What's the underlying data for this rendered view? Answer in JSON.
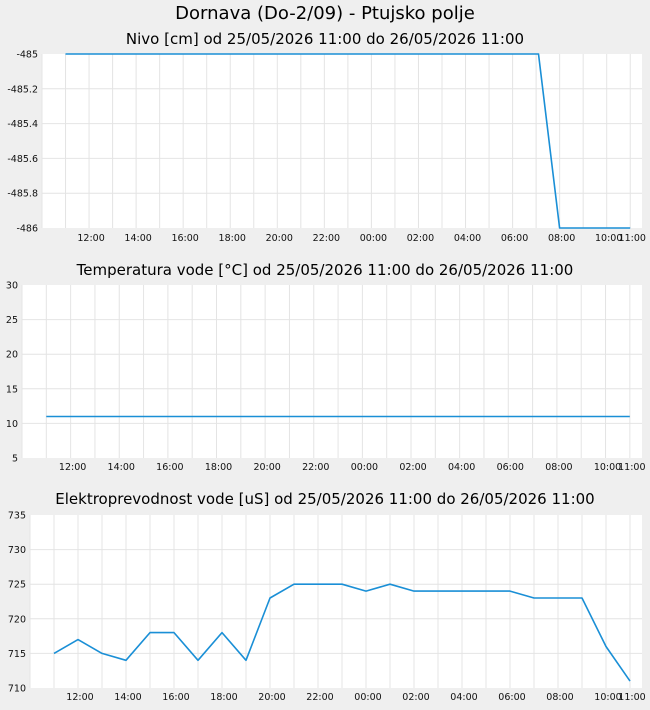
{
  "page": {
    "title": "Dornava (Do-2/09) - Ptujsko polje"
  },
  "colors": {
    "background": "#efefef",
    "plot_background": "#ffffff",
    "grid": "#e4e4e4",
    "line": "#1a8fd6"
  },
  "chart_data": [
    {
      "type": "line",
      "title": "Nivo [cm] od 25/05/2026 11:00 do 26/05/2026 11:00",
      "xlabel": "",
      "ylabel": "",
      "x_ticks": [
        "12:00",
        "14:00",
        "16:00",
        "18:00",
        "20:00",
        "22:00",
        "00:00",
        "02:00",
        "04:00",
        "06:00",
        "08:00",
        "10:00",
        "11:00"
      ],
      "y_ticks": [
        "-485",
        "-485.2",
        "-485.4",
        "-485.6",
        "-485.8",
        "-486"
      ],
      "ylim": [
        -486,
        -485
      ],
      "xlim_hours": [
        10.0,
        35.5
      ],
      "grid": true,
      "series": [
        {
          "x": [
            11,
            31.1,
            32.0,
            35.0
          ],
          "y": [
            -485,
            -485,
            -486,
            -486
          ]
        }
      ]
    },
    {
      "type": "line",
      "title": "Temperatura vode [°C] od 25/05/2026 11:00 do 26/05/2026 11:00",
      "xlabel": "",
      "ylabel": "",
      "x_ticks": [
        "12:00",
        "14:00",
        "16:00",
        "18:00",
        "20:00",
        "22:00",
        "00:00",
        "02:00",
        "04:00",
        "06:00",
        "08:00",
        "10:00",
        "11:00"
      ],
      "y_ticks": [
        "30",
        "25",
        "20",
        "15",
        "10",
        "5"
      ],
      "ylim": [
        5,
        30
      ],
      "xlim_hours": [
        10.0,
        35.5
      ],
      "grid": true,
      "series": [
        {
          "x": [
            11,
            35
          ],
          "y": [
            11,
            11
          ]
        }
      ]
    },
    {
      "type": "line",
      "title": "Elektroprevodnost vode [uS] od 25/05/2026 11:00 do 26/05/2026 11:00",
      "xlabel": "",
      "ylabel": "",
      "x_ticks": [
        "12:00",
        "14:00",
        "16:00",
        "18:00",
        "20:00",
        "22:00",
        "00:00",
        "02:00",
        "04:00",
        "06:00",
        "08:00",
        "10:00",
        "11:00"
      ],
      "y_ticks": [
        "735",
        "730",
        "725",
        "720",
        "715",
        "710"
      ],
      "ylim": [
        710,
        735
      ],
      "xlim_hours": [
        10.0,
        35.5
      ],
      "grid": true,
      "series": [
        {
          "x": [
            11,
            12,
            13,
            14,
            15,
            16,
            17,
            18,
            19,
            20,
            21,
            22,
            23,
            24,
            25,
            26,
            27,
            28,
            29,
            30,
            31,
            32,
            33,
            34,
            35
          ],
          "y": [
            715,
            717,
            715,
            714,
            718,
            718,
            714,
            718,
            714,
            723,
            725,
            725,
            725,
            724,
            725,
            724,
            724,
            724,
            724,
            724,
            723,
            723,
            723,
            716,
            711
          ]
        }
      ]
    }
  ]
}
